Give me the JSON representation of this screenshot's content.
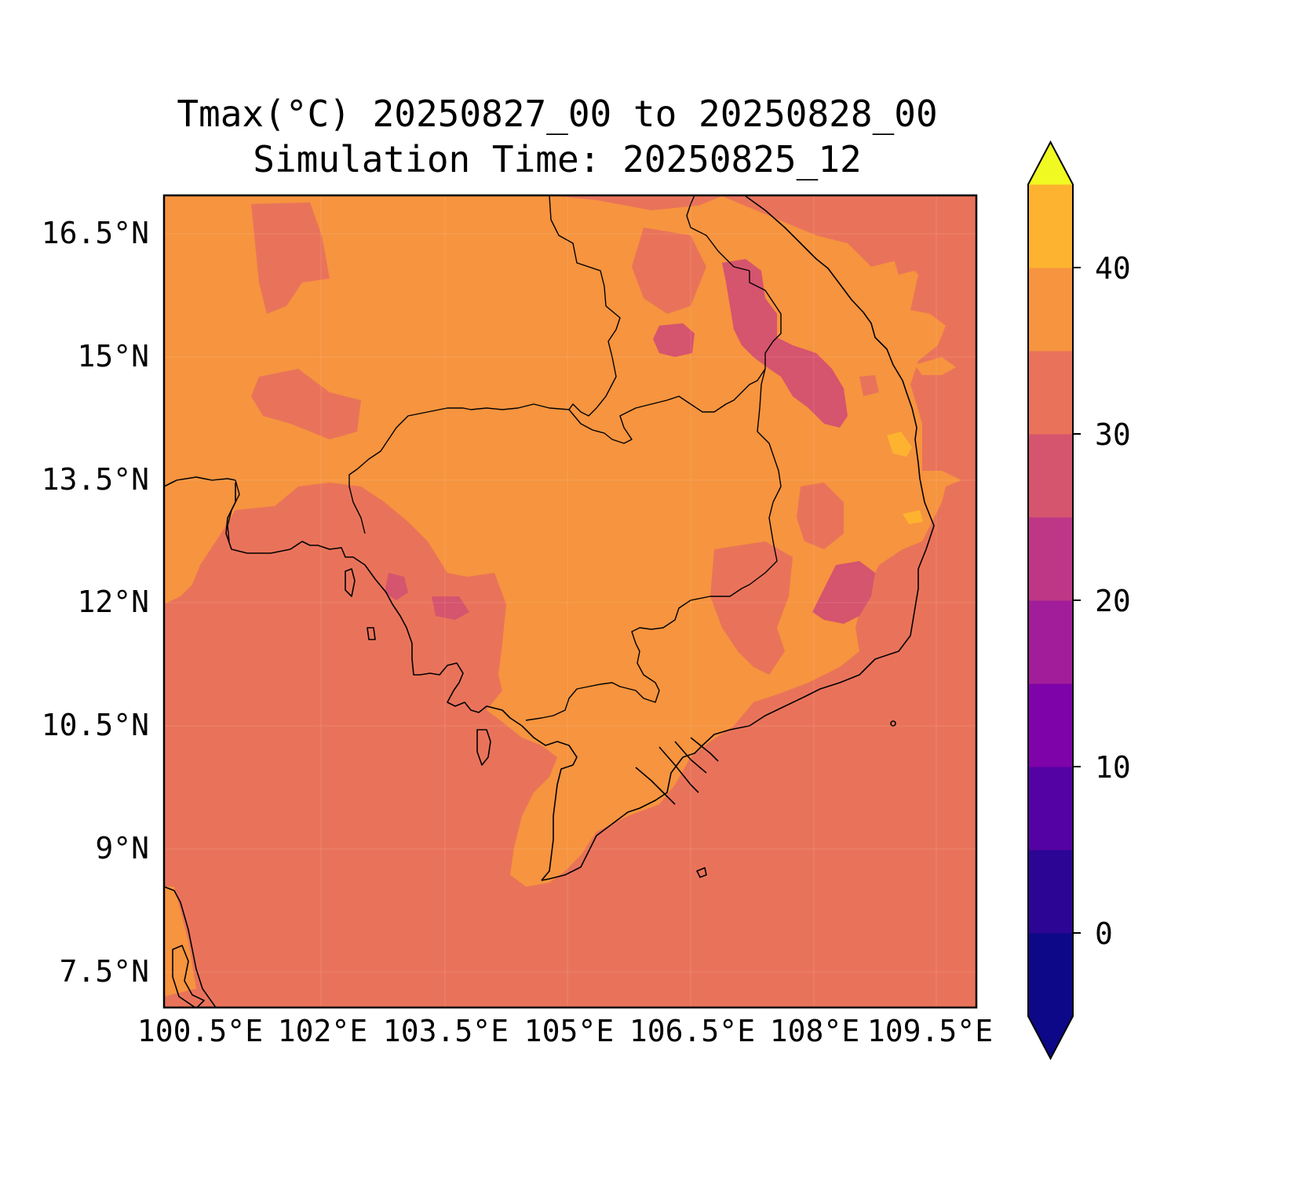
{
  "title_line_1": "Tmax(°C) 20250827_00 to 20250828_00",
  "title_line_2": "Simulation Time: 20250825_12",
  "lat_ticks": [
    "16.5°N",
    "15°N",
    "13.5°N",
    "12°N",
    "10.5°N",
    "9°N",
    "7.5°N"
  ],
  "lon_ticks": [
    "100.5°E",
    "102°E",
    "103.5°E",
    "105°E",
    "106.5°E",
    "108°E",
    "109.5°E"
  ],
  "colorbar": {
    "ticks": [
      "40",
      "30",
      "20",
      "10",
      "0"
    ],
    "levels": [
      -5,
      0,
      5,
      10,
      15,
      20,
      25,
      30,
      35,
      40,
      45
    ],
    "colors": [
      "#0d0887",
      "#2c0594",
      "#5402a3",
      "#7e03a8",
      "#a21d9a",
      "#bd3786",
      "#d5546e",
      "#e9735a",
      "#f6943f",
      "#fdb32f",
      "#f3e224"
    ],
    "extend": "both"
  },
  "map_colors": {
    "dominant_sea": "#e9735a",
    "dominant_land": "#f6943f",
    "cool_highlands": "#d5546e",
    "hot_spot": "#fdb32f",
    "coastline": "#000000"
  }
}
